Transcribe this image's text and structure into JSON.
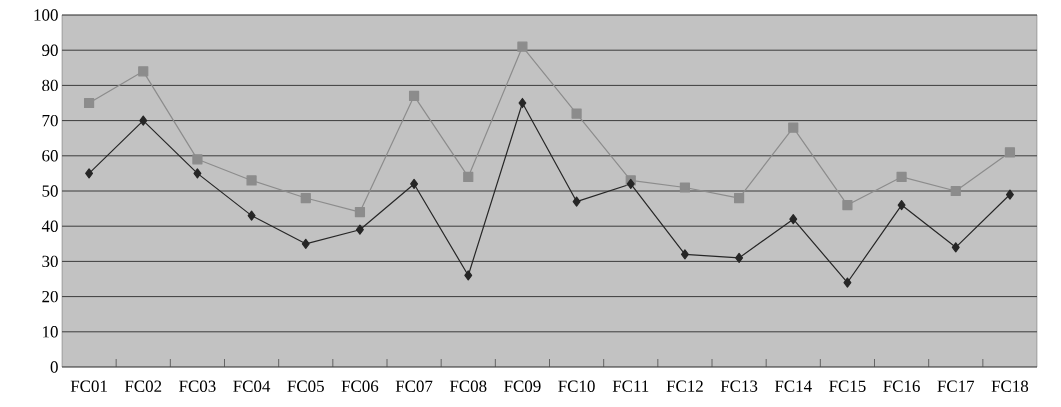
{
  "chart_data": {
    "type": "line",
    "categories": [
      "FC01",
      "FC02",
      "FC03",
      "FC04",
      "FC05",
      "FC06",
      "FC07",
      "FC08",
      "FC09",
      "FC10",
      "FC11",
      "FC12",
      "FC13",
      "FC14",
      "FC15",
      "FC16",
      "FC17",
      "FC18"
    ],
    "series": [
      {
        "color": "#8c8c8c",
        "marker": "square",
        "values": [
          75,
          84,
          59,
          53,
          48,
          44,
          77,
          54,
          91,
          72,
          53,
          51,
          48,
          68,
          46,
          54,
          50,
          61
        ]
      },
      {
        "color": "#262626",
        "marker": "diamond",
        "values": [
          55,
          70,
          55,
          43,
          35,
          39,
          52,
          26,
          75,
          47,
          52,
          32,
          31,
          42,
          24,
          46,
          34,
          49
        ]
      }
    ],
    "ylim": [
      0,
      100
    ],
    "yticks": [
      0,
      10,
      20,
      30,
      40,
      50,
      60,
      70,
      80,
      90,
      100
    ],
    "grid": "y"
  }
}
